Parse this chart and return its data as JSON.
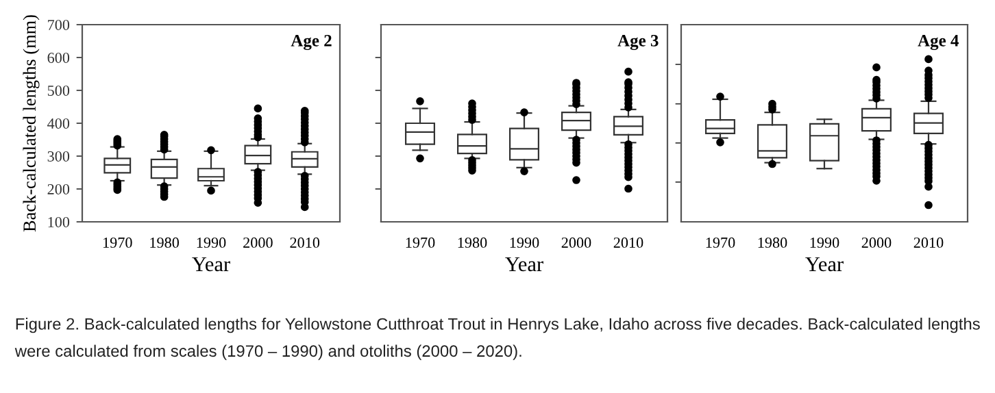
{
  "chart_data": [
    {
      "type": "box",
      "categories": [
        "1970",
        "1980",
        "1990",
        "2000",
        "2010"
      ],
      "xlabel": "Year",
      "ylabel": "Back-calculated lengths (mm)",
      "ylim": [
        100,
        700
      ],
      "yticks": [
        100,
        200,
        300,
        400,
        500,
        600,
        700
      ],
      "grid": false,
      "annotations": [
        "Age 2",
        "Figure 2. Back-calculated lengths for Yellowstone Cutthroat Trout in Henrys Lake, Idaho across five decades. Back-calculated lengths were calculated from scales (1970 – 1990) and otoliths (2000 – 2020)."
      ],
      "boxes": [
        {
          "low": 225,
          "q1": 249,
          "median": 273,
          "q3": 293,
          "high": 328,
          "outliers": [
            332,
            337,
            342,
            347,
            352,
            220,
            214,
            208,
            202,
            197
          ]
        },
        {
          "low": 212,
          "q1": 233,
          "median": 267,
          "q3": 290,
          "high": 315,
          "outliers": [
            320,
            328,
            336,
            344,
            352,
            360,
            365,
            208,
            200,
            192,
            184,
            176
          ]
        },
        {
          "low": 210,
          "q1": 225,
          "median": 237,
          "q3": 262,
          "high": 315,
          "outliers": [
            318,
            195
          ]
        },
        {
          "low": 257,
          "q1": 277,
          "median": 302,
          "q3": 332,
          "high": 352,
          "outliers": [
            357,
            365,
            375,
            385,
            395,
            405,
            415,
            445,
            252,
            242,
            232,
            222,
            212,
            202,
            192,
            182,
            172,
            158
          ]
        },
        {
          "low": 245,
          "q1": 267,
          "median": 292,
          "q3": 313,
          "high": 338,
          "outliers": [
            342,
            352,
            362,
            372,
            382,
            392,
            402,
            412,
            422,
            432,
            438,
            240,
            230,
            220,
            210,
            200,
            190,
            180,
            170,
            160,
            145
          ]
        }
      ]
    },
    {
      "type": "box",
      "categories": [
        "1970",
        "1980",
        "1990",
        "2000",
        "2010"
      ],
      "xlabel": "Year",
      "ylim": [
        100,
        700
      ],
      "yticks": [
        {
          "value": 200,
          "label": null
        },
        {
          "value": 300,
          "label": null
        },
        {
          "value": 400,
          "label": null
        },
        {
          "value": 500,
          "label": null
        },
        {
          "value": 600,
          "label": null
        }
      ],
      "tick_labels": "x",
      "grid": false,
      "annotations": [
        "Age 3"
      ],
      "boxes": [
        {
          "low": 318,
          "q1": 336,
          "median": 373,
          "q3": 400,
          "high": 445,
          "outliers": [
            467,
            293
          ]
        },
        {
          "low": 293,
          "q1": 308,
          "median": 331,
          "q3": 366,
          "high": 404,
          "outliers": [
            410,
            420,
            430,
            440,
            450,
            460,
            288,
            280,
            272,
            264,
            256
          ]
        },
        {
          "low": 265,
          "q1": 289,
          "median": 322,
          "q3": 384,
          "high": 431,
          "outliers": [
            433,
            254
          ]
        },
        {
          "low": 355,
          "q1": 379,
          "median": 408,
          "q3": 433,
          "high": 453,
          "outliers": [
            458,
            468,
            478,
            488,
            498,
            508,
            518,
            523,
            350,
            340,
            330,
            320,
            310,
            300,
            290,
            280,
            227
          ]
        },
        {
          "low": 341,
          "q1": 365,
          "median": 391,
          "q3": 420,
          "high": 442,
          "outliers": [
            448,
            460,
            472,
            484,
            496,
            508,
            520,
            525,
            557,
            336,
            326,
            316,
            306,
            296,
            286,
            276,
            266,
            256,
            246,
            236,
            201
          ]
        }
      ]
    },
    {
      "type": "box",
      "categories": [
        "1970",
        "1980",
        "1990",
        "2000",
        "2010"
      ],
      "xlabel": "Year",
      "ylim": [
        100,
        700
      ],
      "yticks": [
        {
          "value": 221,
          "label": null
        },
        {
          "value": 340,
          "label": null
        },
        {
          "value": 459,
          "label": null
        },
        {
          "value": 579,
          "label": null
        }
      ],
      "tick_labels": "x",
      "grid": false,
      "annotations": [
        "Age 4"
      ],
      "boxes": [
        {
          "low": 355,
          "q1": 369,
          "median": 384,
          "q3": 410,
          "high": 473,
          "outliers": [
            481,
            342
          ]
        },
        {
          "low": 280,
          "q1": 295,
          "median": 316,
          "q3": 395,
          "high": 433,
          "outliers": [
            442,
            450,
            459,
            276
          ]
        },
        {
          "low": 262,
          "q1": 286,
          "median": 362,
          "q3": 398,
          "high": 412
        },
        {
          "low": 351,
          "q1": 377,
          "median": 417,
          "q3": 444,
          "high": 470,
          "outliers": [
            475,
            485,
            495,
            505,
            515,
            525,
            532,
            570,
            348,
            338,
            328,
            318,
            308,
            298,
            288,
            278,
            268,
            258,
            248,
            238,
            225
          ]
        },
        {
          "low": 337,
          "q1": 369,
          "median": 401,
          "q3": 430,
          "high": 467,
          "outliers": [
            477,
            487,
            497,
            507,
            517,
            527,
            537,
            547,
            560,
            595,
            334,
            324,
            314,
            304,
            294,
            284,
            274,
            264,
            254,
            244,
            234,
            224,
            207,
            151
          ]
        }
      ]
    }
  ]
}
